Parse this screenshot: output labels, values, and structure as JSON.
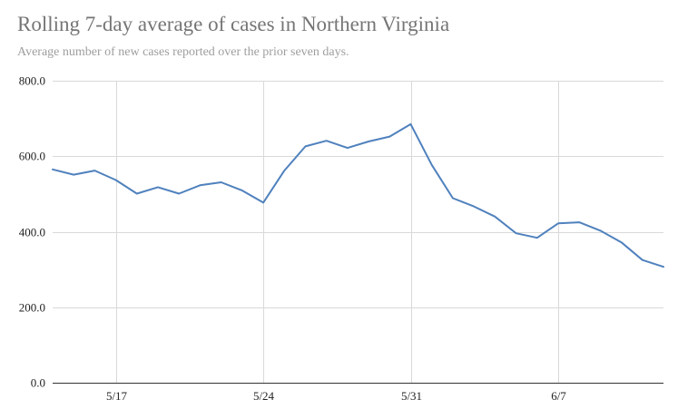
{
  "chart_data": {
    "type": "line",
    "title": "Rolling 7-day average of cases in Northern Virginia",
    "subtitle": "Average number of new cases reported over the prior seven days.",
    "xlabel": "",
    "ylabel": "",
    "ylim": [
      0,
      800
    ],
    "yticks": [
      0,
      200,
      400,
      600,
      800
    ],
    "ytick_labels": [
      "0.0",
      "200.0",
      "400.0",
      "600.0",
      "800.0"
    ],
    "xtick_labels": [
      "5/17",
      "5/24",
      "5/31",
      "6/7"
    ],
    "xtick_indices": [
      3,
      10,
      17,
      24
    ],
    "x": [
      "5/14",
      "5/15",
      "5/16",
      "5/17",
      "5/18",
      "5/19",
      "5/20",
      "5/21",
      "5/22",
      "5/23",
      "5/24",
      "5/25",
      "5/26",
      "5/27",
      "5/28",
      "5/29",
      "5/30",
      "5/31",
      "6/1",
      "6/2",
      "6/3",
      "6/4",
      "6/5",
      "6/6",
      "6/7",
      "6/8",
      "6/9",
      "6/10",
      "6/11",
      "6/12"
    ],
    "series": [
      {
        "name": "Rolling 7-day average",
        "color": "#4f81bd",
        "values": [
          565,
          551,
          562,
          537,
          501,
          518,
          501,
          523,
          531,
          509,
          477,
          562,
          626,
          641,
          622,
          639,
          652,
          685,
          577,
          489,
          467,
          440,
          396,
          384,
          422,
          425,
          403,
          372,
          325,
          307
        ]
      }
    ],
    "grid": true
  }
}
